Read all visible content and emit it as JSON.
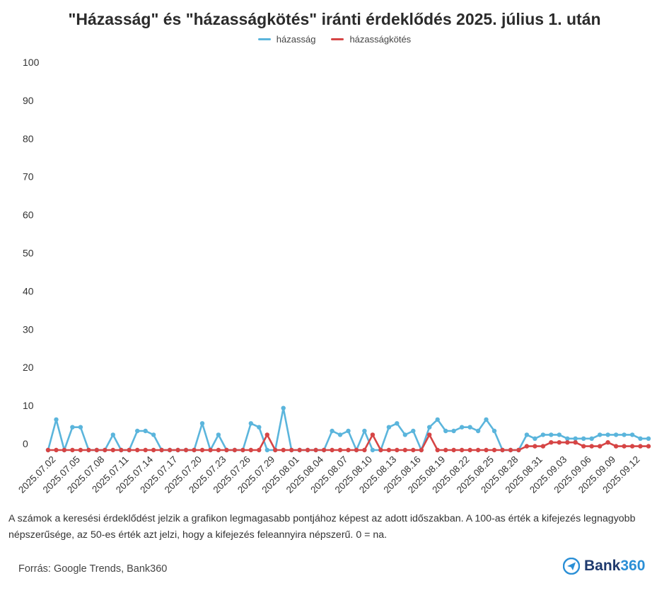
{
  "chart_data": {
    "type": "line",
    "title": "\"Házasság\" és \"házasságkötés\" iránti érdeklődés 2025. július 1. után",
    "xlabel": "",
    "ylabel": "",
    "ylim": [
      0,
      100
    ],
    "yticks": [
      0,
      10,
      20,
      30,
      40,
      50,
      60,
      70,
      80,
      90,
      100
    ],
    "grid": false,
    "legend_position": "top-center",
    "x": [
      "2025.07.01",
      "2025.07.02",
      "2025.07.03",
      "2025.07.04",
      "2025.07.05",
      "2025.07.06",
      "2025.07.07",
      "2025.07.08",
      "2025.07.09",
      "2025.07.10",
      "2025.07.11",
      "2025.07.12",
      "2025.07.13",
      "2025.07.14",
      "2025.07.15",
      "2025.07.16",
      "2025.07.17",
      "2025.07.18",
      "2025.07.19",
      "2025.07.20",
      "2025.07.21",
      "2025.07.22",
      "2025.07.23",
      "2025.07.24",
      "2025.07.25",
      "2025.07.26",
      "2025.07.27",
      "2025.07.28",
      "2025.07.29",
      "2025.07.30",
      "2025.07.31",
      "2025.08.01",
      "2025.08.02",
      "2025.08.03",
      "2025.08.04",
      "2025.08.05",
      "2025.08.06",
      "2025.08.07",
      "2025.08.08",
      "2025.08.09",
      "2025.08.10",
      "2025.08.11",
      "2025.08.12",
      "2025.08.13",
      "2025.08.14",
      "2025.08.15",
      "2025.08.16",
      "2025.08.17",
      "2025.08.18",
      "2025.08.19",
      "2025.08.20",
      "2025.08.21",
      "2025.08.22",
      "2025.08.23",
      "2025.08.24",
      "2025.08.25",
      "2025.08.26",
      "2025.08.27",
      "2025.08.28",
      "2025.08.29",
      "2025.08.30",
      "2025.08.31",
      "2025.09.01",
      "2025.09.02",
      "2025.09.03",
      "2025.09.04",
      "2025.09.05",
      "2025.09.06",
      "2025.09.07",
      "2025.09.08",
      "2025.09.09",
      "2025.09.10",
      "2025.09.11",
      "2025.09.12",
      "2025.09.13"
    ],
    "x_tick_labels": [
      "2025.07.02",
      "2025.07.05",
      "2025.07.08",
      "2025.07.11",
      "2025.07.14",
      "2025.07.17",
      "2025.07.20",
      "2025.07.23",
      "2025.07.26",
      "2025.07.29",
      "2025.08.01",
      "2025.08.04",
      "2025.08.07",
      "2025.08.10",
      "2025.08.13",
      "2025.08.16",
      "2025.08.19",
      "2025.08.22",
      "2025.08.25",
      "2025.08.28",
      "2025.08.31",
      "2025.09.03",
      "2025.09.06",
      "2025.09.09",
      "2025.09.12"
    ],
    "series": [
      {
        "name": "házasság",
        "color": "#5bb5dc",
        "values": [
          0,
          8,
          0,
          6,
          6,
          0,
          0,
          0,
          4,
          0,
          0,
          5,
          5,
          4,
          0,
          0,
          0,
          0,
          0,
          7,
          0,
          4,
          0,
          0,
          0,
          7,
          6,
          0,
          0,
          11,
          0,
          0,
          0,
          0,
          0,
          5,
          4,
          5,
          0,
          5,
          0,
          0,
          6,
          7,
          4,
          5,
          0,
          6,
          8,
          5,
          5,
          6,
          6,
          5,
          8,
          5,
          0,
          0,
          0,
          4,
          3,
          4,
          4,
          4,
          3,
          3,
          3,
          3,
          4,
          4,
          4,
          4,
          4,
          3,
          3
        ]
      },
      {
        "name": "házasságkötés",
        "color": "#d64545",
        "values": [
          0,
          0,
          0,
          0,
          0,
          0,
          0,
          0,
          0,
          0,
          0,
          0,
          0,
          0,
          0,
          0,
          0,
          0,
          0,
          0,
          0,
          0,
          0,
          0,
          0,
          0,
          0,
          4,
          0,
          0,
          0,
          0,
          0,
          0,
          0,
          0,
          0,
          0,
          0,
          0,
          4,
          0,
          0,
          0,
          0,
          0,
          0,
          4,
          0,
          0,
          0,
          0,
          0,
          0,
          0,
          0,
          0,
          0,
          0,
          1,
          1,
          1,
          2,
          2,
          2,
          2,
          1,
          1,
          1,
          2,
          1,
          1,
          1,
          1,
          1
        ]
      }
    ]
  },
  "note": "A számok a keresési érdeklődést jelzik a grafikon legmagasabb pontjához képest az adott időszakban. A 100-as érték a kifejezés legnagyobb népszerűsége, az 50-es érték azt jelzi, hogy a kifejezés feleannyira népszerű. 0 = na.",
  "source": "Forrás: Google Trends, Bank360",
  "logo": {
    "part1": "Bank",
    "part2": "360"
  }
}
